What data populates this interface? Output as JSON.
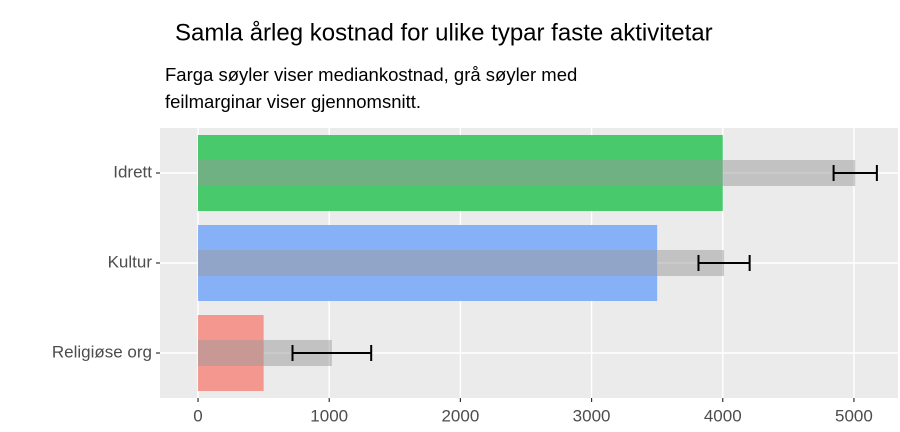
{
  "chart_data": {
    "type": "bar",
    "orientation": "horizontal",
    "title": "Samla årleg kostnad for ulike typar faste aktivitetar",
    "subtitle": [
      "Farga søyler viser mediankostnad, grå søyler med",
      "feilmarginar viser gjennomsnitt."
    ],
    "categories": [
      "Idrett",
      "Kultur",
      "Religiøse org"
    ],
    "values": [
      4000,
      3500,
      500
    ],
    "colors": [
      "#47c96c",
      "#87b1f7",
      "#f4978f"
    ],
    "mean_values": [
      5010,
      4010,
      1020
    ],
    "mean_errors": [
      165,
      195,
      300
    ],
    "mean_color": "#999999",
    "xlim": [
      -290,
      5336
    ],
    "xticks": [
      0,
      1000,
      2000,
      3000,
      4000,
      5000
    ],
    "grid": true
  }
}
